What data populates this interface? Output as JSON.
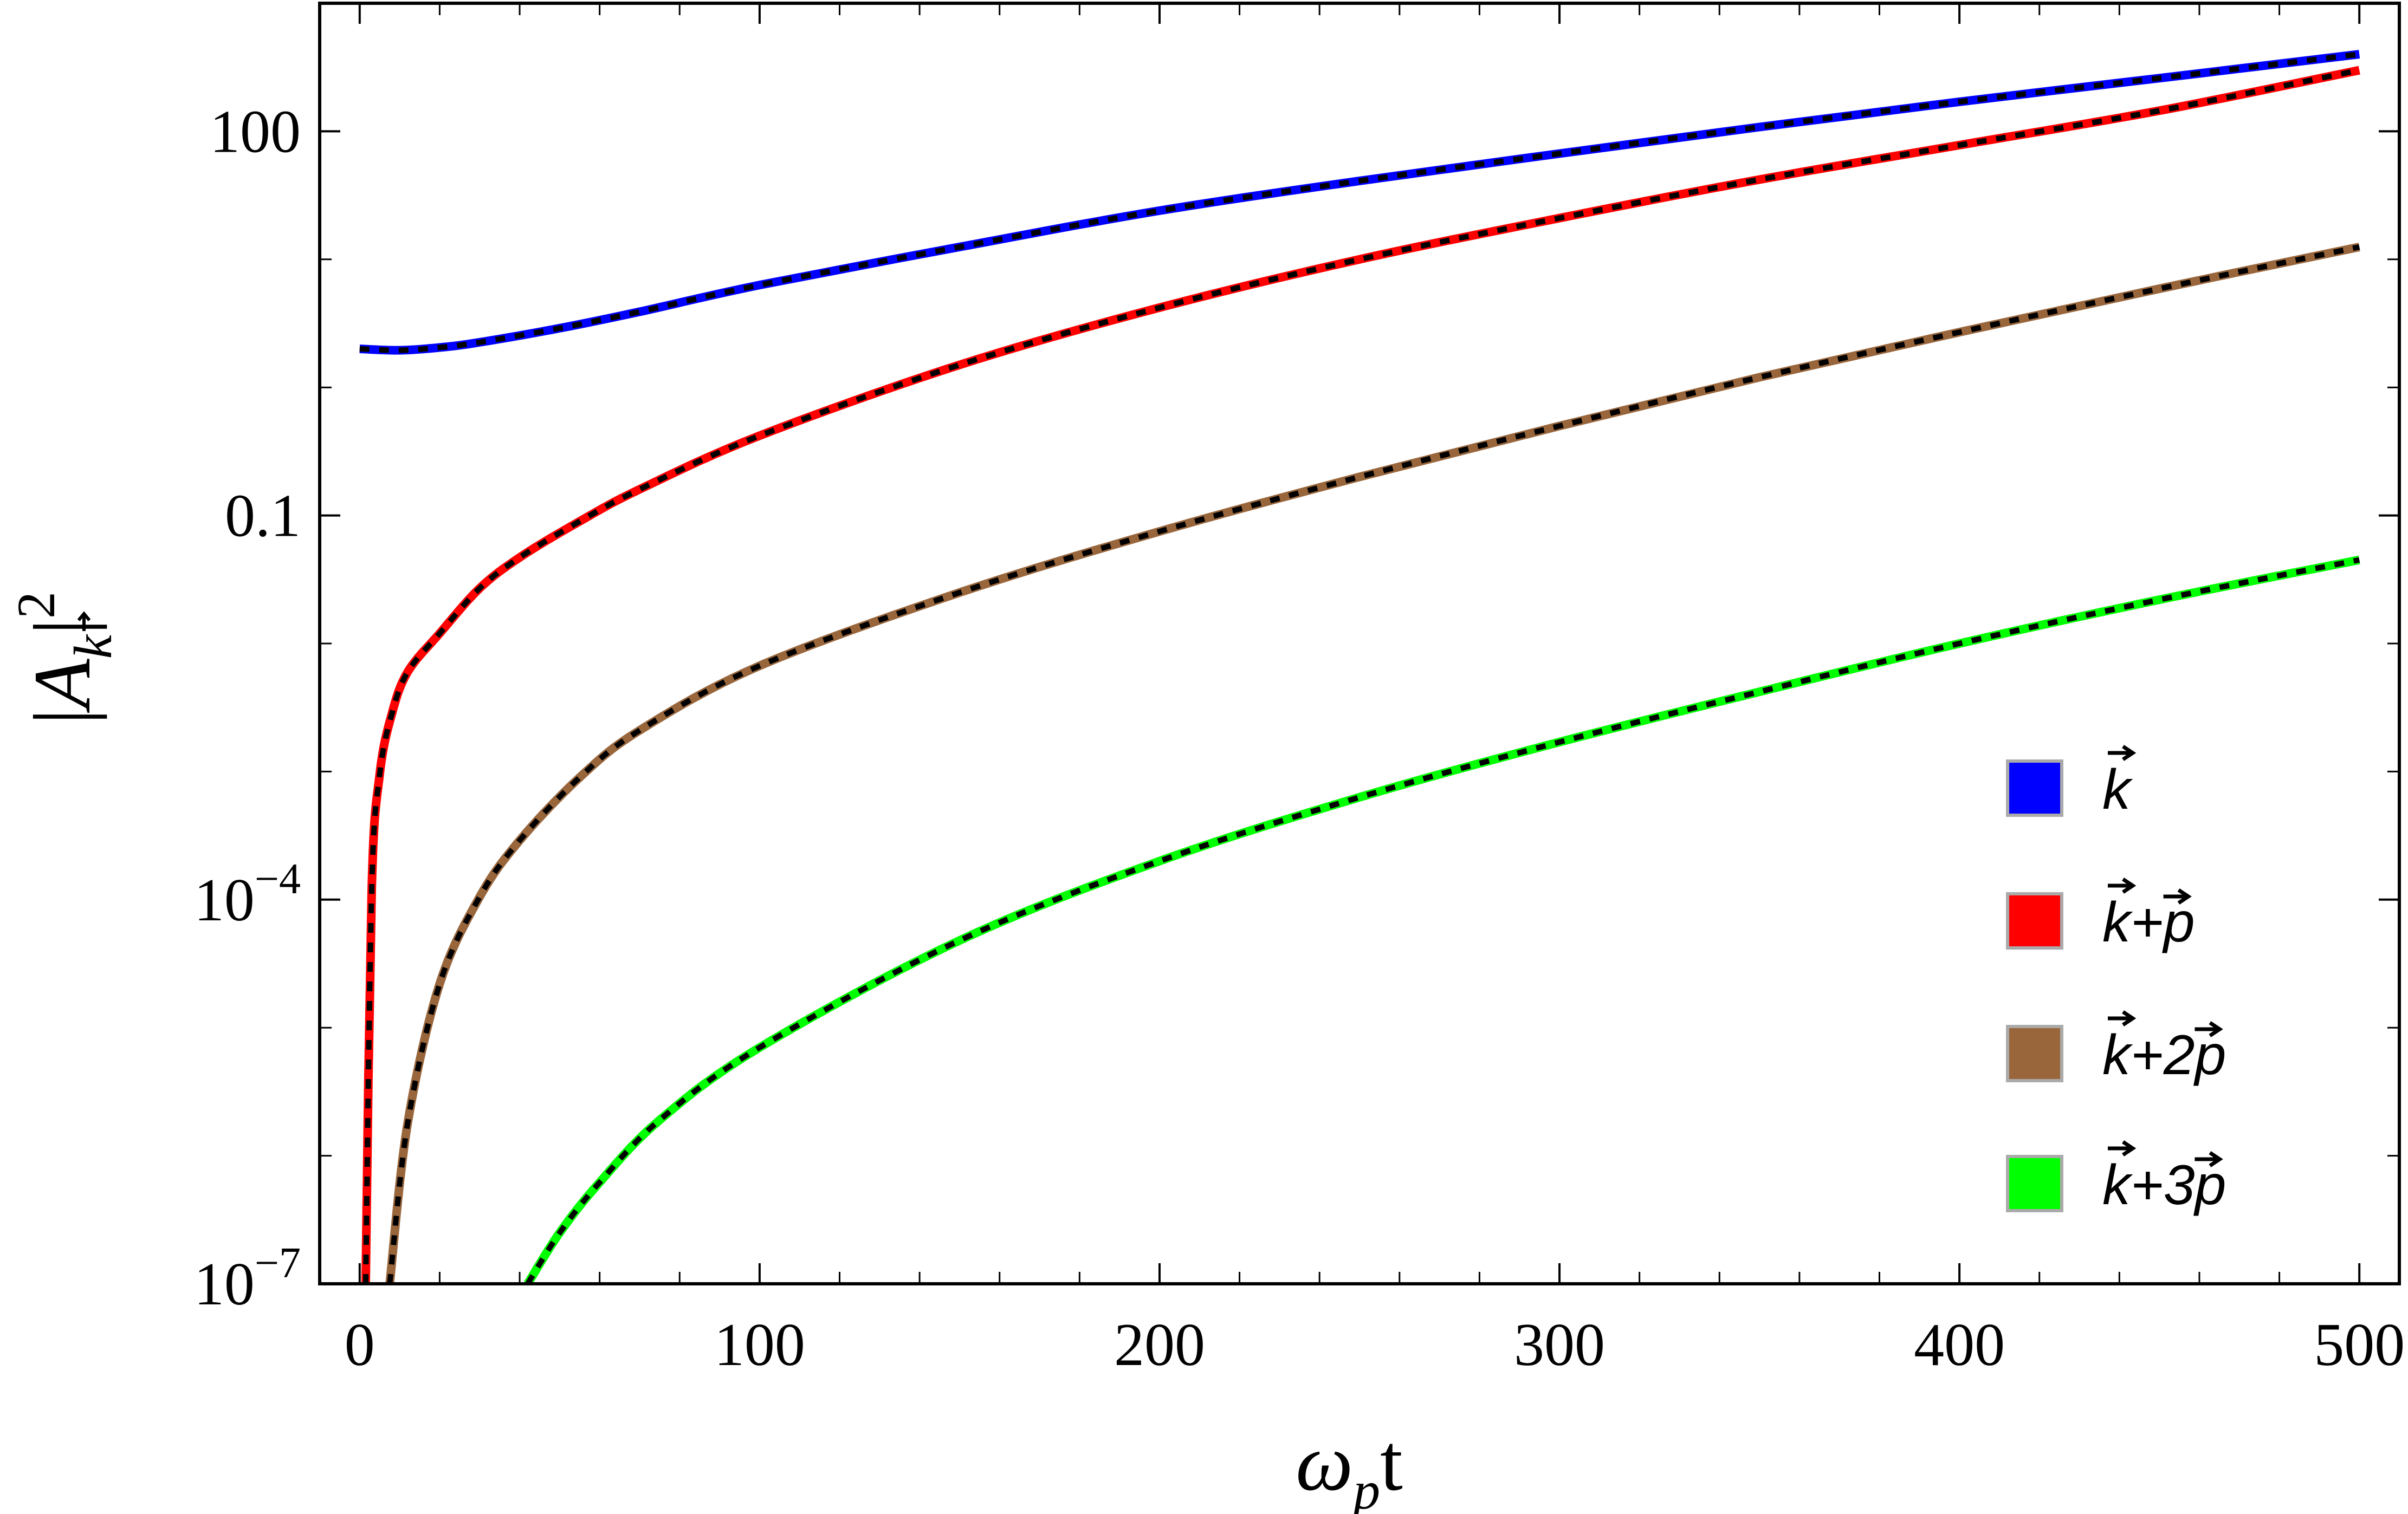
{
  "chart_data": {
    "type": "line",
    "title": "",
    "xlabel": "ωpt",
    "ylabel": "|Ak|2",
    "xlim": [
      -10,
      510
    ],
    "ylim": [
      1e-07,
      1000
    ],
    "y_scale": "log",
    "x_ticks": [
      "0",
      "100",
      "200",
      "300",
      "400",
      "500"
    ],
    "y_ticks": [
      {
        "value": 100,
        "label": "100"
      },
      {
        "value": 0.1,
        "label": "0.1"
      },
      {
        "value": 0.0001,
        "base": "10",
        "exp": "−4"
      },
      {
        "value": 1e-07,
        "base": "10",
        "exp": "−7"
      }
    ],
    "grid": false,
    "legend_position": "lower-right",
    "overlay_style": "black dashed curve drawn over each series",
    "series": [
      {
        "name": "k",
        "color": "#0000ff",
        "x": [
          0,
          10,
          20,
          30,
          50,
          70,
          100,
          150,
          200,
          250,
          300,
          350,
          400,
          450,
          500
        ],
        "y": [
          2.0,
          1.95,
          2.05,
          2.25,
          2.9,
          3.9,
          6.3,
          12.5,
          24,
          41,
          67,
          108,
          170,
          260,
          400
        ]
      },
      {
        "name": "k+p",
        "color": "#ff0000",
        "x": [
          1.5,
          3,
          5,
          8,
          12,
          20,
          30,
          40,
          55,
          70,
          100,
          150,
          200,
          250,
          300,
          350,
          400,
          450,
          500
        ],
        "y": [
          1e-07,
          0.00012,
          0.00095,
          0.0028,
          0.006,
          0.012,
          0.027,
          0.047,
          0.09,
          0.16,
          0.42,
          1.5,
          4.2,
          10,
          21,
          42,
          78,
          145,
          300
        ]
      },
      {
        "name": "k+2p",
        "color": "#99663c",
        "x": [
          7.5,
          12,
          20,
          30,
          40,
          55,
          70,
          100,
          150,
          200,
          250,
          300,
          350,
          400,
          450,
          500
        ],
        "y": [
          1e-07,
          1.8e-06,
          2.2e-05,
          0.000105,
          0.00029,
          0.0009,
          0.0021,
          0.0067,
          0.025,
          0.075,
          0.2,
          0.5,
          1.2,
          2.7,
          5.9,
          12.5
        ]
      },
      {
        "name": "k+3p",
        "color": "#00ff00",
        "x": [
          42,
          50,
          60,
          75,
          100,
          150,
          200,
          250,
          300,
          350,
          400,
          450,
          500
        ],
        "y": [
          1e-07,
          2.5e-07,
          6.2e-07,
          1.9e-06,
          7e-06,
          4.8e-05,
          0.0002,
          0.00063,
          0.0017,
          0.0042,
          0.01,
          0.022,
          0.045
        ]
      }
    ]
  }
}
